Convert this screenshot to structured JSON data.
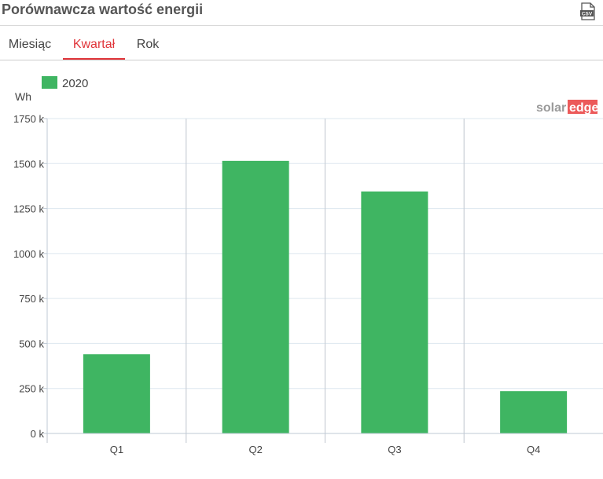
{
  "header": {
    "title": "Porównawcza wartość energii",
    "csv_icon_label": "CSV"
  },
  "tabs": [
    {
      "label": "Miesiąc",
      "active": false
    },
    {
      "label": "Kwartał",
      "active": true
    },
    {
      "label": "Rok",
      "active": false
    }
  ],
  "watermark": {
    "part1": "solar",
    "part2": "edge"
  },
  "colors": {
    "accent": "#e0353a",
    "bar": "#3fb562",
    "grid": "#dde7ef",
    "separator": "#c9ced6",
    "axis": "#bfcad6"
  },
  "chart_data": {
    "type": "bar",
    "ylabel": "Wh",
    "categories": [
      "Q1",
      "Q2",
      "Q3",
      "Q4"
    ],
    "series": [
      {
        "name": "2020",
        "values": [
          440000,
          1515000,
          1345000,
          235000
        ]
      }
    ],
    "ylim": [
      0,
      1750000
    ],
    "yticks": [
      0,
      250000,
      500000,
      750000,
      1000000,
      1250000,
      1500000,
      1750000
    ],
    "ytick_labels": [
      "0 k",
      "250 k",
      "500 k",
      "750 k",
      "1000 k",
      "1250 k",
      "1500 k",
      "1750 k"
    ],
    "grid": true,
    "legend_position": "top-left"
  }
}
